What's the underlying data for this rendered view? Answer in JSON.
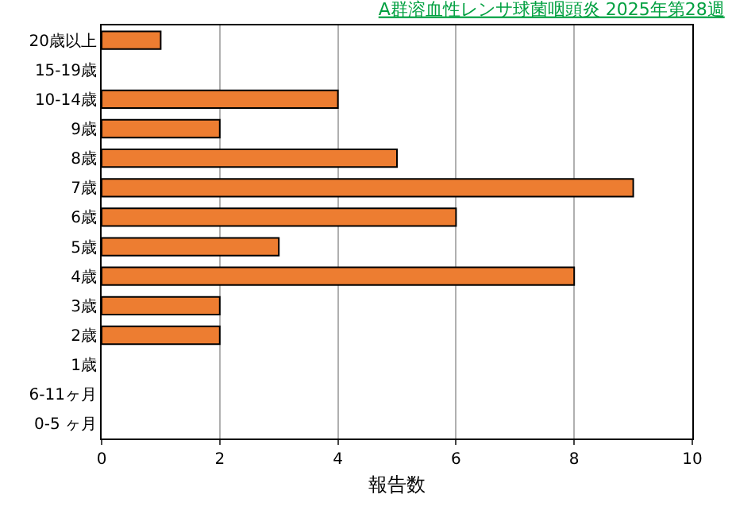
{
  "chart_data": {
    "type": "bar",
    "orientation": "horizontal",
    "title": "A群溶血性レンサ球菌咽頭炎 2025年第28週",
    "xlabel": "報告数",
    "categories": [
      "20歳以上",
      "15-19歳",
      "10-14歳",
      "9歳",
      "8歳",
      "7歳",
      "6歳",
      "5歳",
      "4歳",
      "3歳",
      "2歳",
      "1歳",
      "6-11ヶ月",
      "0-5 ヶ月"
    ],
    "values": [
      1,
      0,
      4,
      2,
      5,
      9,
      6,
      3,
      8,
      2,
      2,
      0,
      0,
      0
    ],
    "color": "#ed7d31",
    "xlim": [
      0,
      10
    ],
    "xticks": [
      0,
      2,
      4,
      6,
      8,
      10
    ],
    "grid": "x",
    "legend": false
  }
}
